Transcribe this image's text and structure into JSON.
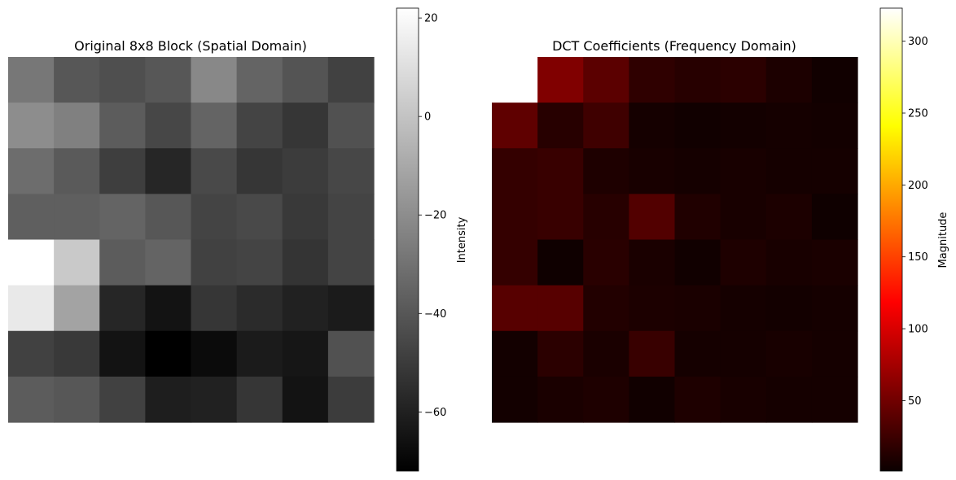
{
  "chart_data": [
    {
      "type": "heatmap",
      "title": "Original 8x8 Block (Spatial Domain)",
      "colormap": "gray",
      "axes": "off",
      "colorbar": {
        "label": "Intensity",
        "range": [
          -72,
          22
        ],
        "ticks": [
          20,
          0,
          -20,
          -40,
          -60
        ],
        "tick_labels": [
          "20",
          "0",
          "−20",
          "−40",
          "−60"
        ]
      },
      "rows": [
        [
          -28,
          -40,
          -43,
          -40,
          -22,
          -35,
          -41,
          -48
        ],
        [
          -20,
          -25,
          -38,
          -46,
          -35,
          -47,
          -52,
          -42
        ],
        [
          -32,
          -39,
          -49,
          -58,
          -45,
          -52,
          -50,
          -46
        ],
        [
          -37,
          -37,
          -35,
          -40,
          -47,
          -45,
          -51,
          -47
        ],
        [
          22,
          2,
          -38,
          -35,
          -48,
          -47,
          -53,
          -47
        ],
        [
          14,
          -12,
          -58,
          -65,
          -52,
          -56,
          -60,
          -62
        ],
        [
          -48,
          -51,
          -65,
          -72,
          -68,
          -62,
          -64,
          -42
        ],
        [
          -38,
          -40,
          -48,
          -61,
          -60,
          -52,
          -65,
          -50
        ]
      ]
    },
    {
      "type": "heatmap",
      "title": "DCT Coefficients (Frequency Domain)",
      "colormap": "hot",
      "axes": "off",
      "colorbar": {
        "label": "Magnitude",
        "range": [
          1,
          323
        ],
        "ticks": [
          300,
          250,
          200,
          150,
          100,
          50
        ],
        "tick_labels": [
          "300",
          "250",
          "200",
          "150",
          "100",
          "50"
        ]
      },
      "rows": [
        [
          323,
          55,
          38,
          18,
          14,
          16,
          9,
          4
        ],
        [
          40,
          14,
          25,
          6,
          4,
          5,
          6,
          5
        ],
        [
          20,
          22,
          10,
          7,
          6,
          7,
          6,
          6
        ],
        [
          20,
          22,
          14,
          34,
          11,
          7,
          9,
          3
        ],
        [
          20,
          3,
          15,
          8,
          4,
          10,
          7,
          8
        ],
        [
          36,
          36,
          12,
          9,
          8,
          6,
          5,
          6
        ],
        [
          5,
          16,
          8,
          22,
          6,
          6,
          7,
          6
        ],
        [
          5,
          8,
          10,
          4,
          10,
          7,
          6,
          6
        ]
      ]
    }
  ]
}
